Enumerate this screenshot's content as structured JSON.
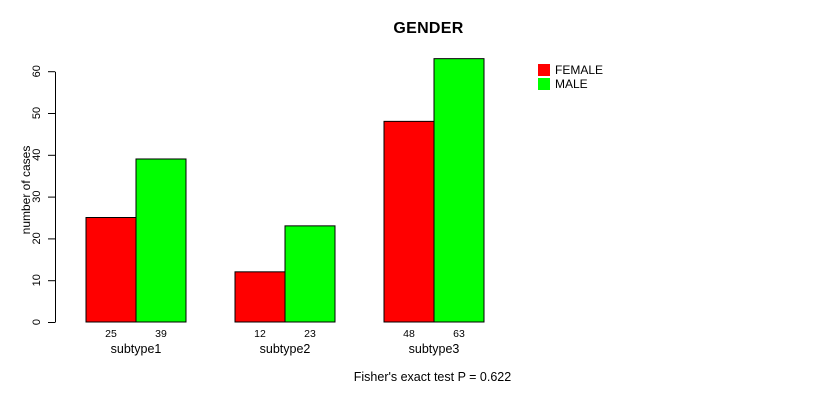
{
  "chart_data": {
    "type": "bar",
    "title": "GENDER",
    "categories": [
      "subtype1",
      "subtype2",
      "subtype3"
    ],
    "series": [
      {
        "name": "FEMALE",
        "color": "#FF0000",
        "values": [
          25,
          12,
          48
        ]
      },
      {
        "name": "MALE",
        "color": "#00FF00",
        "values": [
          39,
          23,
          63
        ]
      }
    ],
    "xlabel": "",
    "ylabel": "number of cases",
    "ylim": [
      0,
      60
    ],
    "yticks": [
      0,
      10,
      20,
      30,
      40,
      50,
      60
    ],
    "grid": false,
    "bar_value_labels": true,
    "legend_position": "top-right",
    "annotation": "Fisher's exact test P = 0.622"
  }
}
